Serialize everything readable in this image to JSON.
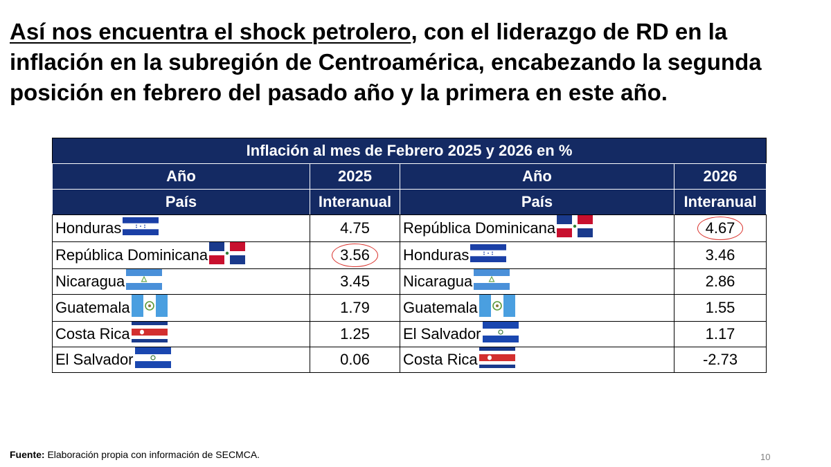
{
  "slide": {
    "title_underlined": "Así nos encuentra el shock petrolero",
    "title_rest": ", con el liderazgo de  RD en la inflación en la subregión de Centroamérica, encabezando la segunda posición en febrero del pasado año  y la primera en este año.",
    "source_label": "Fuente:",
    "source_text": " Elaboración propia con información de SECMCA.",
    "page_number": "10"
  },
  "table": {
    "title": "Inflación al mes de Febrero 2025 y 2026 en %",
    "header_row1": [
      "Año",
      "2025",
      "Año",
      "2026"
    ],
    "header_row2": [
      "País",
      "Interanual",
      "País",
      "Interanual"
    ],
    "left_rows": [
      {
        "country": "Honduras",
        "flag": "honduras-flag",
        "value": "4.75",
        "highlight": false
      },
      {
        "country": "República Dominicana",
        "flag": "dominican-republic-flag",
        "value": "3.56",
        "highlight": true
      },
      {
        "country": "Nicaragua",
        "flag": "nicaragua-flag",
        "value": "3.45",
        "highlight": false
      },
      {
        "country": "Guatemala",
        "flag": "guatemala-flag",
        "value": "1.79",
        "highlight": false
      },
      {
        "country": "Costa Rica",
        "flag": "costa-rica-flag",
        "value": "1.25",
        "highlight": false
      },
      {
        "country": "El Salvador",
        "flag": "el-salvador-flag",
        "value": "0.06",
        "highlight": false
      }
    ],
    "right_rows": [
      {
        "country": "República Dominicana",
        "flag": "dominican-republic-flag",
        "value": "4.67",
        "highlight": true
      },
      {
        "country": "Honduras",
        "flag": "honduras-flag",
        "value": "3.46",
        "highlight": false
      },
      {
        "country": "Nicaragua",
        "flag": "nicaragua-flag",
        "value": "2.86",
        "highlight": false
      },
      {
        "country": "Guatemala",
        "flag": "guatemala-flag",
        "value": "1.55",
        "highlight": false
      },
      {
        "country": "El Salvador",
        "flag": "el-salvador-flag",
        "value": "1.17",
        "highlight": false
      },
      {
        "country": "Costa Rica",
        "flag": "costa-rica-flag",
        "value": "-2.73",
        "highlight": false
      }
    ]
  },
  "colors": {
    "header_bg": "#142a63",
    "highlight_circle": "#d9302a"
  }
}
